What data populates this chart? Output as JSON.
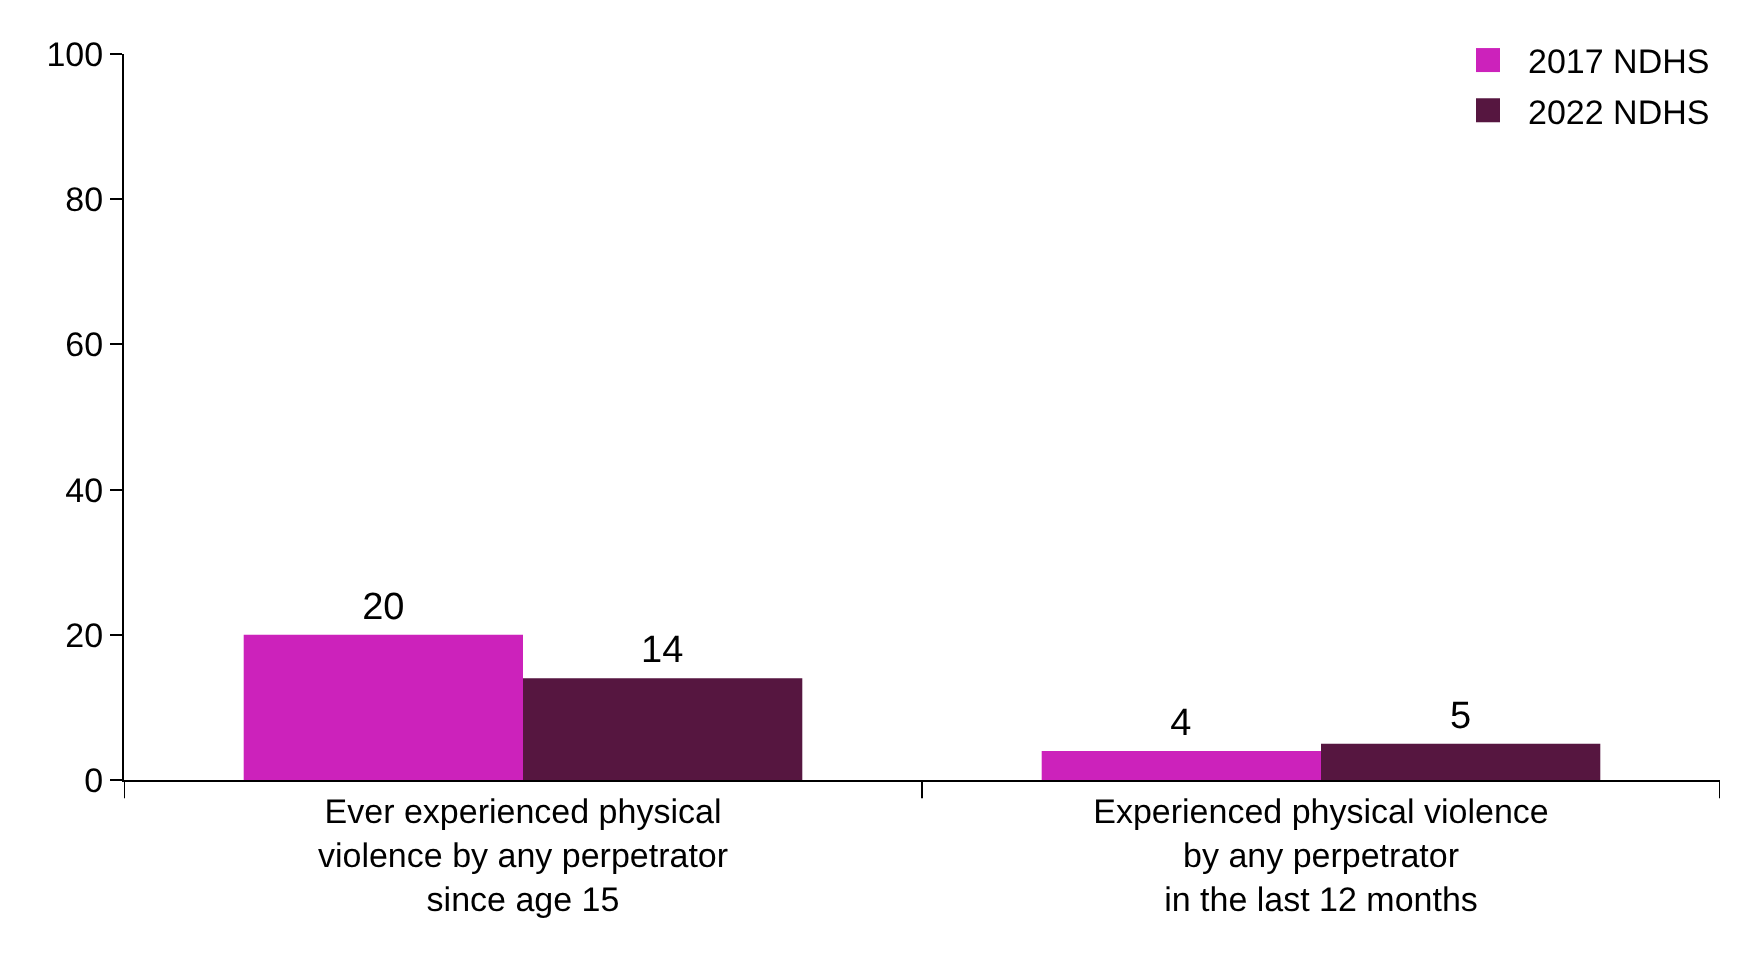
{
  "chart_data": {
    "type": "bar",
    "categories": [
      "Ever experienced physical\nviolence by any perpetrator\nsince age 15",
      "Experienced physical violence\nby any perpetrator\nin the last 12 months"
    ],
    "series": [
      {
        "name": "2017 NDHS",
        "color": "#cc22bb",
        "values": [
          20,
          4
        ]
      },
      {
        "name": "2022 NDHS",
        "color": "#561640",
        "values": [
          14,
          5
        ]
      }
    ],
    "ylim": [
      0,
      100
    ],
    "yticks": [
      0,
      20,
      40,
      60,
      80,
      100
    ],
    "legend": "top right",
    "data_labels": true
  }
}
